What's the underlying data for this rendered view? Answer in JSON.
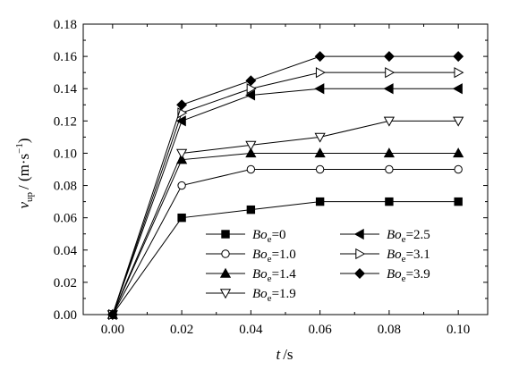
{
  "chart_data": {
    "type": "line",
    "x": [
      0.0,
      0.02,
      0.04,
      0.06,
      0.08,
      0.1
    ],
    "xlim": [
      -0.0085,
      0.1085
    ],
    "ylim": [
      0.0,
      0.18
    ],
    "xticks": [
      "0.00",
      "0.02",
      "0.04",
      "0.06",
      "0.08",
      "0.10"
    ],
    "yticks": [
      "0.00",
      "0.02",
      "0.04",
      "0.06",
      "0.08",
      "0.10",
      "0.12",
      "0.14",
      "0.16",
      "0.18"
    ],
    "xlabel": {
      "var": "t",
      "unit": "/s"
    },
    "ylabel": {
      "var": "v",
      "sub": "up",
      "unit": "/ (m·s",
      "sup": "−1",
      "close": ")"
    },
    "grid": false,
    "legend_position": "bottom-right",
    "series": [
      {
        "name": "Bo",
        "sub": "e",
        "value": "=0",
        "marker": "square",
        "values": [
          0.0,
          0.06,
          0.065,
          0.07,
          0.07,
          0.07
        ]
      },
      {
        "name": "Bo",
        "sub": "e",
        "value": "=1.0",
        "marker": "circle-open",
        "values": [
          0.0,
          0.08,
          0.09,
          0.09,
          0.09,
          0.09
        ]
      },
      {
        "name": "Bo",
        "sub": "e",
        "value": "=1.4",
        "marker": "triangle-up",
        "values": [
          0.0,
          0.096,
          0.1,
          0.1,
          0.1,
          0.1
        ]
      },
      {
        "name": "Bo",
        "sub": "e",
        "value": "=1.9",
        "marker": "triangle-down-open",
        "values": [
          0.0,
          0.1,
          0.105,
          0.11,
          0.12,
          0.12
        ]
      },
      {
        "name": "Bo",
        "sub": "e",
        "value": "=2.5",
        "marker": "triangle-left",
        "values": [
          0.0,
          0.12,
          0.136,
          0.14,
          0.14,
          0.14
        ]
      },
      {
        "name": "Bo",
        "sub": "e",
        "value": "=3.1",
        "marker": "triangle-right-open",
        "values": [
          0.0,
          0.125,
          0.14,
          0.15,
          0.15,
          0.15
        ]
      },
      {
        "name": "Bo",
        "sub": "e",
        "value": "=3.9",
        "marker": "diamond",
        "values": [
          0.0,
          0.13,
          0.145,
          0.16,
          0.16,
          0.16
        ]
      }
    ]
  }
}
